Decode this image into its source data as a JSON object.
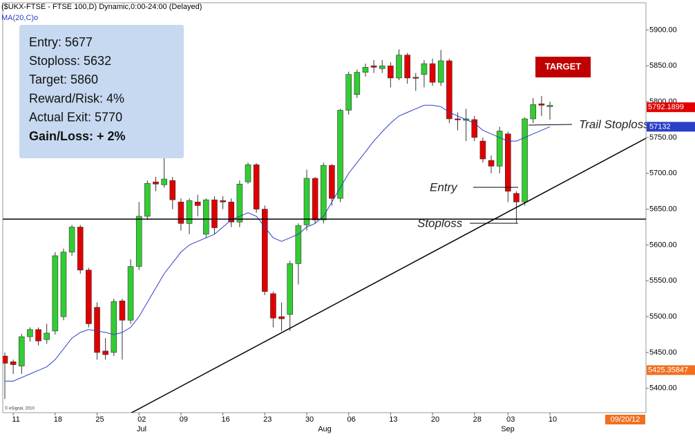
{
  "chart_data": {
    "type": "candlestick",
    "title": "($UKX-FTSE - FTSE 100,D) Dynamic,0:00-24:00 (Delayed)",
    "subtitle": "MA(20,C)o",
    "categories": [
      null,
      "11",
      null,
      null,
      null,
      null,
      "18",
      null,
      null,
      null,
      null,
      "25",
      null,
      null,
      null,
      null,
      "02",
      null,
      null,
      null,
      null,
      "09",
      null,
      null,
      null,
      null,
      "16",
      null,
      null,
      null,
      null,
      "23",
      null,
      null,
      null,
      null,
      "30",
      null,
      null,
      null,
      null,
      "06",
      null,
      null,
      null,
      null,
      "13",
      null,
      null,
      null,
      null,
      "20",
      null,
      null,
      null,
      null,
      "28",
      null,
      null,
      null,
      "03",
      null,
      null,
      null,
      null,
      "10"
    ],
    "months": [
      "Jul",
      "Aug",
      "Sep"
    ],
    "open": [
      5445,
      5437,
      5431,
      5472,
      5482,
      5468,
      5480,
      5500,
      5590,
      5625,
      5565,
      5513,
      5452,
      5450,
      5522,
      5495,
      5570,
      5640,
      5688,
      5684,
      5690,
      5660,
      5630,
      5660,
      5615,
      5663,
      5662,
      5660,
      5632,
      5688,
      5712,
      5650,
      5532,
      5500,
      5503,
      5574,
      5628,
      5693,
      5635,
      5711,
      5665,
      5788,
      5810,
      5841,
      5850,
      5846,
      5850,
      5833,
      5865,
      5834,
      5838,
      5853,
      5827,
      5857,
      5776,
      5774,
      5775,
      5745,
      5718,
      5710,
      5755,
      5672,
      5660,
      5776,
      5797,
      5793
    ],
    "high": [
      5450,
      5440,
      5476,
      5485,
      5485,
      5490,
      5590,
      5595,
      5628,
      5628,
      5568,
      5520,
      5470,
      5525,
      5525,
      5580,
      5660,
      5690,
      5695,
      5725,
      5695,
      5665,
      5665,
      5670,
      5665,
      5668,
      5668,
      5665,
      5690,
      5715,
      5714,
      5655,
      5535,
      5520,
      5578,
      5630,
      5705,
      5695,
      5715,
      5713,
      5790,
      5842,
      5845,
      5853,
      5858,
      5858,
      5855,
      5873,
      5868,
      5840,
      5858,
      5860,
      5872,
      5860,
      5785,
      5790,
      5780,
      5750,
      5725,
      5765,
      5758,
      5675,
      5778,
      5805,
      5808,
      5800
    ],
    "low": [
      5385,
      5420,
      5420,
      5465,
      5460,
      5462,
      5475,
      5495,
      5585,
      5560,
      5485,
      5440,
      5440,
      5445,
      5440,
      5490,
      5565,
      5635,
      5675,
      5680,
      5650,
      5620,
      5615,
      5640,
      5610,
      5615,
      5650,
      5625,
      5625,
      5685,
      5645,
      5530,
      5485,
      5480,
      5480,
      5545,
      5620,
      5630,
      5630,
      5655,
      5660,
      5782,
      5805,
      5835,
      5840,
      5840,
      5820,
      5830,
      5825,
      5815,
      5820,
      5822,
      5822,
      5770,
      5760,
      5745,
      5745,
      5715,
      5700,
      5700,
      5660,
      5630,
      5655,
      5770,
      5780,
      5775
    ],
    "close": [
      5435,
      5433,
      5472,
      5482,
      5466,
      5477,
      5585,
      5590,
      5625,
      5565,
      5490,
      5450,
      5447,
      5521,
      5495,
      5570,
      5640,
      5686,
      5685,
      5692,
      5663,
      5630,
      5662,
      5655,
      5663,
      5624,
      5660,
      5632,
      5685,
      5712,
      5650,
      5535,
      5498,
      5497,
      5574,
      5627,
      5693,
      5635,
      5711,
      5665,
      5788,
      5838,
      5841,
      5848,
      5848,
      5850,
      5833,
      5865,
      5833,
      5833,
      5853,
      5827,
      5857,
      5776,
      5775,
      5776,
      5750,
      5720,
      5710,
      5759,
      5675,
      5660,
      5776,
      5796,
      5795,
      5795
    ],
    "up_color": "#33cc33",
    "down_color": "#e00000",
    "ma": {
      "color": "#2a3fc8",
      "values": [
        5410,
        5410,
        5415,
        5420,
        5425,
        5430,
        5440,
        5455,
        5470,
        5478,
        5482,
        5480,
        5478,
        5475,
        5478,
        5485,
        5500,
        5520,
        5540,
        5560,
        5575,
        5590,
        5600,
        5605,
        5610,
        5615,
        5625,
        5635,
        5640,
        5645,
        5640,
        5625,
        5610,
        5605,
        5610,
        5615,
        5625,
        5630,
        5640,
        5660,
        5680,
        5700,
        5715,
        5730,
        5745,
        5758,
        5770,
        5780,
        5785,
        5790,
        5795,
        5795,
        5793,
        5785,
        5780,
        5775,
        5770,
        5760,
        5755,
        5750,
        5745,
        5745,
        5750,
        5755,
        5760,
        5765
      ],
      "label": "57132"
    },
    "price_labels": [
      {
        "value": 5792.1899,
        "label": "5792.1899",
        "color": "#e00000"
      },
      {
        "value": 5425.35847,
        "label": "5425.35847",
        "color": "#f07020"
      }
    ],
    "ylim": [
      5366,
      5938
    ],
    "yticks": [
      {
        "value": 5400,
        "label": "5400.00"
      },
      {
        "value": 5450,
        "label": "5450.00"
      },
      {
        "value": 5500,
        "label": "5500.00"
      },
      {
        "value": 5550,
        "label": "5550.00"
      },
      {
        "value": 5600,
        "label": "5600.00"
      },
      {
        "value": 5650,
        "label": "5650.00"
      },
      {
        "value": 5700,
        "label": "5700.00"
      },
      {
        "value": 5750,
        "label": "5750.00"
      },
      {
        "value": 5800,
        "label": "5800.00"
      },
      {
        "value": 5850,
        "label": "5850.00"
      },
      {
        "value": 5900,
        "label": "5900.00"
      }
    ],
    "info_box": [
      "Entry: 5677",
      "Stoploss: 5632",
      "Target: 5860",
      "Reward/Risk: 4%",
      "Actual Exit: 5770",
      "Gain/Loss: +  2%"
    ],
    "annotations": {
      "target": "TARGET",
      "trail": "Trail Stoploss",
      "entry": "Entry",
      "stoploss": "Stoploss"
    },
    "copyright": "© eSignal, 2010",
    "date_box": "09/20/12"
  }
}
